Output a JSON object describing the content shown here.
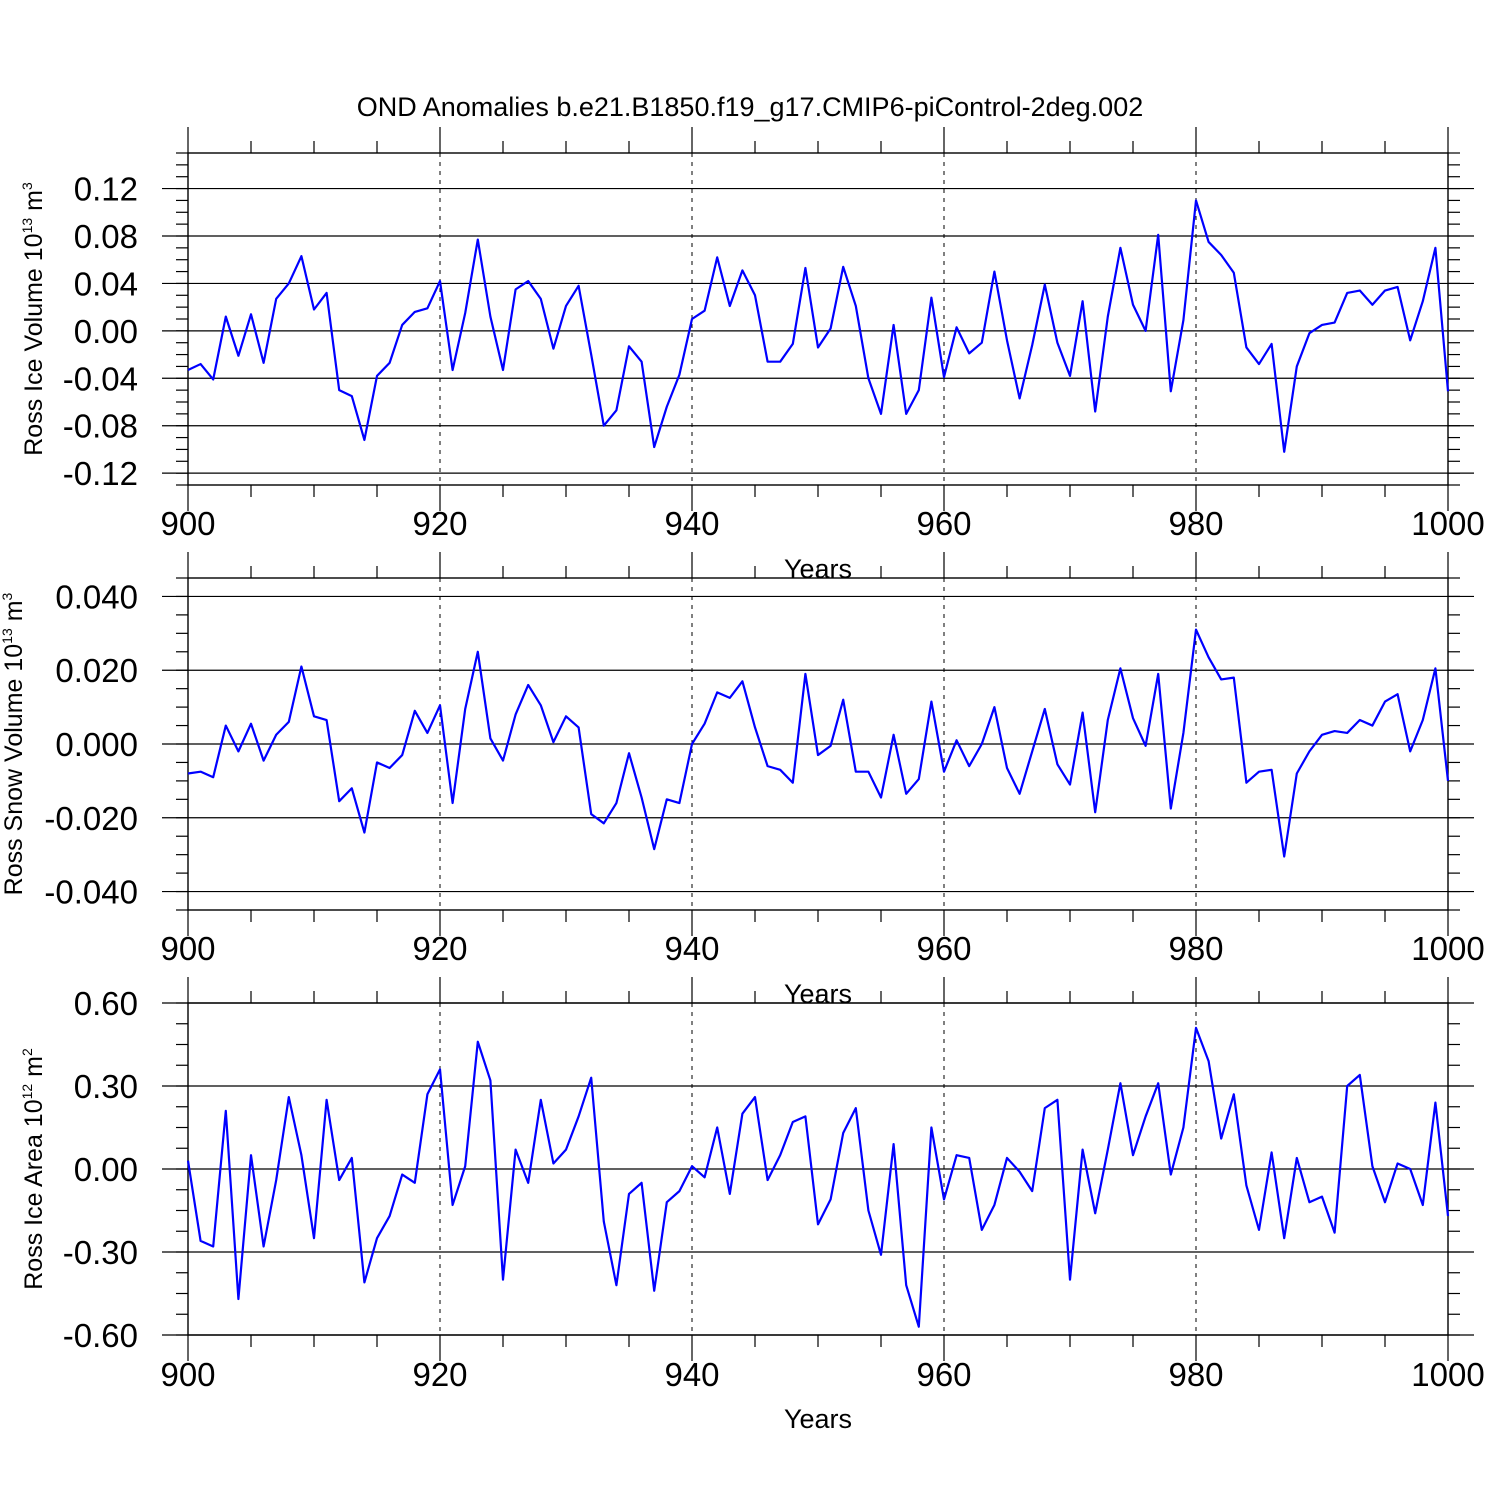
{
  "title": "OND Anomalies b.e21.B1850.f19_g17.CMIP6-piControl-2deg.002",
  "chart_data": [
    {
      "type": "line",
      "ylabel": "Ross Ice Volume 10",
      "ylabel_exp": "13",
      "ylabel_unit": " m",
      "ylabel_unit_exp": "3",
      "xlabel": "Years",
      "xlim": [
        900,
        1000
      ],
      "ylim": [
        -0.13,
        0.15
      ],
      "xticks": [
        900,
        920,
        940,
        960,
        980,
        1000
      ],
      "xtick_labels": [
        "900",
        "920",
        "940",
        "960",
        "980",
        "1000"
      ],
      "yticks": [
        -0.12,
        -0.08,
        -0.04,
        0.0,
        0.04,
        0.08,
        0.12
      ],
      "ytick_labels": [
        "-0.12",
        "-0.08",
        "-0.04",
        "0.00",
        "0.04",
        "0.08",
        "0.12"
      ],
      "grid_x": [
        920,
        940,
        960,
        980
      ],
      "series": [
        {
          "name": "Ross Ice Volume",
          "color": "#0000ff",
          "x_start": 900,
          "values": [
            -0.033,
            -0.028,
            -0.041,
            0.012,
            -0.021,
            0.014,
            -0.027,
            0.027,
            0.04,
            0.063,
            0.018,
            0.032,
            -0.05,
            -0.055,
            -0.092,
            -0.038,
            -0.027,
            0.005,
            0.016,
            0.019,
            0.042,
            -0.033,
            0.015,
            0.077,
            0.012,
            -0.033,
            0.035,
            0.042,
            0.027,
            -0.015,
            0.021,
            0.038,
            -0.02,
            -0.08,
            -0.067,
            -0.013,
            -0.026,
            -0.098,
            -0.064,
            -0.037,
            0.01,
            0.017,
            0.062,
            0.021,
            0.051,
            0.03,
            -0.026,
            -0.026,
            -0.011,
            0.053,
            -0.014,
            0.002,
            0.054,
            0.021,
            -0.04,
            -0.07,
            0.005,
            -0.07,
            -0.05,
            0.028,
            -0.039,
            0.003,
            -0.019,
            -0.01,
            0.05,
            -0.008,
            -0.057,
            -0.012,
            0.039,
            -0.01,
            -0.038,
            0.025,
            -0.068,
            0.012,
            0.07,
            0.022,
            0.0,
            0.081,
            -0.051,
            0.009,
            0.11,
            0.075,
            0.064,
            0.049,
            -0.014,
            -0.028,
            -0.011,
            -0.102,
            -0.03,
            -0.002,
            0.005,
            0.007,
            0.032,
            0.034,
            0.022,
            0.034,
            0.037,
            -0.008,
            0.025,
            0.07,
            -0.051
          ]
        }
      ]
    },
    {
      "type": "line",
      "ylabel": "Ross Snow Volume 10",
      "ylabel_exp": "13",
      "ylabel_unit": " m",
      "ylabel_unit_exp": "3",
      "xlabel": "Years",
      "xlim": [
        900,
        1000
      ],
      "ylim": [
        -0.045,
        0.045
      ],
      "xticks": [
        900,
        920,
        940,
        960,
        980,
        1000
      ],
      "xtick_labels": [
        "900",
        "920",
        "940",
        "960",
        "980",
        "1000"
      ],
      "yticks": [
        -0.04,
        -0.02,
        0.0,
        0.02,
        0.04
      ],
      "ytick_labels": [
        "-0.040",
        "-0.020",
        "0.000",
        "0.020",
        "0.040"
      ],
      "grid_x": [
        920,
        940,
        960,
        980
      ],
      "series": [
        {
          "name": "Ross Snow Volume",
          "color": "#0000ff",
          "x_start": 900,
          "values": [
            -0.008,
            -0.0075,
            -0.009,
            0.005,
            -0.002,
            0.0055,
            -0.0045,
            0.0025,
            0.006,
            0.021,
            0.0075,
            0.0065,
            -0.0155,
            -0.012,
            -0.024,
            -0.005,
            -0.0065,
            -0.003,
            0.009,
            0.003,
            0.0105,
            -0.016,
            0.0095,
            0.025,
            0.0015,
            -0.0045,
            0.008,
            0.016,
            0.0105,
            0.0005,
            0.0075,
            0.0045,
            -0.019,
            -0.0215,
            -0.016,
            -0.0025,
            -0.0145,
            -0.0285,
            -0.015,
            -0.016,
            0.0,
            0.0055,
            0.014,
            0.0125,
            0.017,
            0.0045,
            -0.006,
            -0.007,
            -0.0105,
            0.019,
            -0.003,
            -0.0005,
            0.012,
            -0.0075,
            -0.0075,
            -0.0145,
            0.0025,
            -0.0135,
            -0.0095,
            0.0115,
            -0.0075,
            0.001,
            -0.006,
            0.0,
            0.01,
            -0.0065,
            -0.0135,
            -0.002,
            0.0095,
            -0.0055,
            -0.011,
            0.0085,
            -0.0185,
            0.0065,
            0.0205,
            0.007,
            -0.0005,
            0.019,
            -0.0175,
            0.003,
            0.031,
            0.0235,
            0.0175,
            0.018,
            -0.0105,
            -0.0075,
            -0.007,
            -0.0305,
            -0.008,
            -0.002,
            0.0025,
            0.0035,
            0.003,
            0.0065,
            0.005,
            0.0115,
            0.0135,
            -0.002,
            0.0065,
            0.0205,
            -0.01
          ]
        }
      ]
    },
    {
      "type": "line",
      "ylabel": "Ross Ice Area 10",
      "ylabel_exp": "12",
      "ylabel_unit": " m",
      "ylabel_unit_exp": "2",
      "xlabel": "Years",
      "xlim": [
        900,
        1000
      ],
      "ylim": [
        -0.6,
        0.6
      ],
      "xticks": [
        900,
        920,
        940,
        960,
        980,
        1000
      ],
      "xtick_labels": [
        "900",
        "920",
        "940",
        "960",
        "980",
        "1000"
      ],
      "yticks": [
        -0.6,
        -0.3,
        0.0,
        0.3,
        0.6
      ],
      "ytick_labels": [
        "-0.60",
        "-0.30",
        "0.00",
        "0.30",
        "0.60"
      ],
      "grid_x": [
        920,
        940,
        960,
        980
      ],
      "series": [
        {
          "name": "Ross Ice Area",
          "color": "#0000ff",
          "x_start": 900,
          "values": [
            0.03,
            -0.26,
            -0.28,
            0.21,
            -0.47,
            0.05,
            -0.28,
            -0.04,
            0.26,
            0.05,
            -0.25,
            0.25,
            -0.04,
            0.04,
            -0.41,
            -0.25,
            -0.17,
            -0.02,
            -0.05,
            0.27,
            0.36,
            -0.13,
            0.01,
            0.46,
            0.32,
            -0.4,
            0.07,
            -0.05,
            0.25,
            0.02,
            0.07,
            0.19,
            0.33,
            -0.19,
            -0.42,
            -0.09,
            -0.05,
            -0.44,
            -0.12,
            -0.08,
            0.01,
            -0.03,
            0.15,
            -0.09,
            0.2,
            0.26,
            -0.04,
            0.05,
            0.17,
            0.19,
            -0.2,
            -0.11,
            0.13,
            0.22,
            -0.15,
            -0.31,
            0.09,
            -0.42,
            -0.57,
            0.15,
            -0.11,
            0.05,
            0.04,
            -0.22,
            -0.13,
            0.04,
            -0.01,
            -0.08,
            0.22,
            0.25,
            -0.4,
            0.07,
            -0.16,
            0.07,
            0.31,
            0.05,
            0.19,
            0.31,
            -0.02,
            0.15,
            0.51,
            0.39,
            0.11,
            0.27,
            -0.06,
            -0.22,
            0.06,
            -0.25,
            0.04,
            -0.12,
            -0.1,
            -0.23,
            0.3,
            0.34,
            0.01,
            -0.12,
            0.02,
            0.0,
            -0.13,
            0.24,
            -0.17
          ]
        }
      ]
    }
  ]
}
